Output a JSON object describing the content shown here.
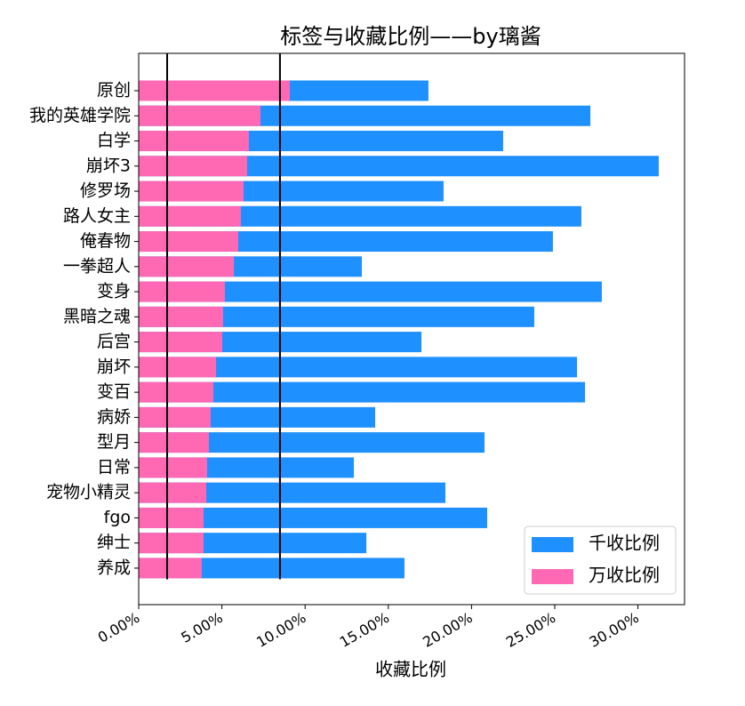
{
  "chart_data": {
    "type": "barh",
    "title": "标签与收藏比例——by璃酱",
    "xlabel": "收藏比例",
    "categories": [
      "原创",
      "我的英雄学院",
      "白学",
      "崩坏3",
      "修罗场",
      "路人女主",
      "俺春物",
      "一拳超人",
      "变身",
      "黑暗之魂",
      "后宫",
      "崩坏",
      "变百",
      "病娇",
      "型月",
      "日常",
      "宠物小精灵",
      "fgo",
      "绅士",
      "养成"
    ],
    "series": [
      {
        "name": "千收比例",
        "color": "#1e90ff",
        "values": [
          17.41,
          27.14,
          21.9,
          31.25,
          18.32,
          26.6,
          24.89,
          13.41,
          27.83,
          23.77,
          16.99,
          26.34,
          26.82,
          14.21,
          20.78,
          12.93,
          18.43,
          20.94,
          13.68,
          15.97
        ]
      },
      {
        "name": "万收比例",
        "color": "#ff69b4",
        "values": [
          9.08,
          7.32,
          6.62,
          6.52,
          6.3,
          6.14,
          5.98,
          5.72,
          5.18,
          5.07,
          5.02,
          4.65,
          4.49,
          4.33,
          4.22,
          4.11,
          4.06,
          3.9,
          3.9,
          3.79
        ]
      }
    ],
    "vlines": [
      1.71,
      8.49
    ],
    "vline_color": "#000000",
    "xlim": [
      0,
      32.8
    ],
    "xticks": [
      {
        "value": 0,
        "label": "0.00%"
      },
      {
        "value": 5,
        "label": "5.00%"
      },
      {
        "value": 10,
        "label": "10.00%"
      },
      {
        "value": 15,
        "label": "15.00%"
      },
      {
        "value": 20,
        "label": "20.00%"
      },
      {
        "value": 25,
        "label": "25.00%"
      },
      {
        "value": 30,
        "label": "30.00%"
      }
    ],
    "legend": "lower right"
  }
}
